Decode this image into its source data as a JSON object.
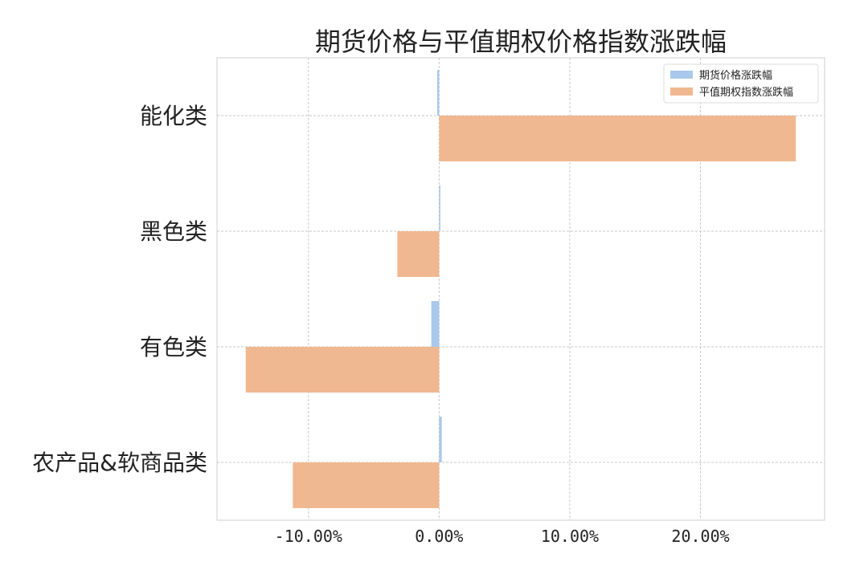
{
  "chart_data": {
    "type": "bar",
    "orientation": "horizontal",
    "title": "期货价格与平值期权价格指数涨跌幅",
    "xlabel": "",
    "ylabel": "",
    "categories": [
      "能化类",
      "黑色类",
      "有色类",
      "农产品&软商品类"
    ],
    "series": [
      {
        "name": "期货价格涨跌幅",
        "color": "#a9c8ec",
        "values": [
          -0.15,
          0.05,
          -0.6,
          0.2
        ]
      },
      {
        "name": "平值期权指数涨跌幅",
        "color": "#f0b890",
        "values": [
          27.3,
          -3.2,
          -14.8,
          -11.2
        ]
      }
    ],
    "xlim": [
      -17,
      29.5
    ],
    "xticks": [
      -10,
      0,
      10,
      20
    ],
    "xtick_labels": [
      "-10.00%",
      "0.00%",
      "10.00%",
      "20.00%"
    ],
    "grid": true,
    "legend_position": "top-right"
  }
}
